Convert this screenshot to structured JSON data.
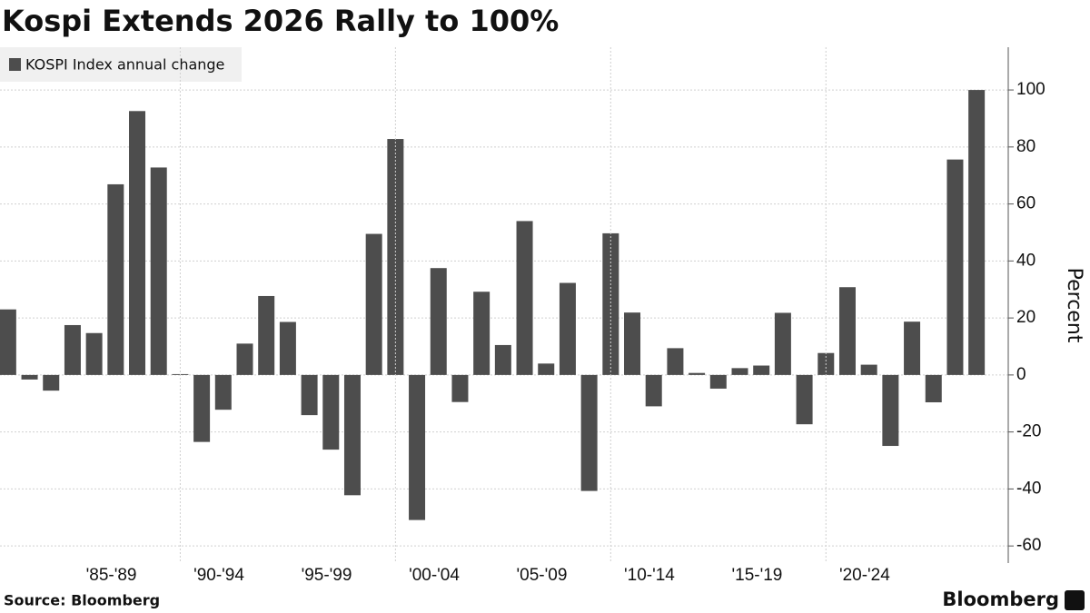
{
  "chart_data": {
    "type": "bar",
    "title": "Kospi Extends 2026 Rally to 100%",
    "legend_label": "KOSPI Index annual change",
    "y_axis_label": "Percent",
    "source": "Source: Bloomberg",
    "brand": "Bloomberg",
    "color": "#4d4d4d",
    "categories": [
      null,
      null,
      null,
      null,
      "'85-'89",
      null,
      null,
      null,
      null,
      "'90-'94",
      null,
      null,
      null,
      null,
      "'95-'99",
      null,
      null,
      null,
      null,
      "'00-'04",
      null,
      null,
      null,
      null,
      "'05-'09",
      null,
      null,
      null,
      null,
      "'10-'14",
      null,
      null,
      null,
      null,
      "'15-'19",
      null,
      null,
      null,
      null,
      "'20-'24",
      null,
      null,
      null,
      null,
      null,
      null
    ],
    "values": [
      23,
      -1.6,
      -5.5,
      17.5,
      14.7,
      66.9,
      92.6,
      72.8,
      0.3,
      -23.5,
      -12.2,
      11,
      27.7,
      18.6,
      -14.1,
      -26.2,
      -42.2,
      49.5,
      82.8,
      -50.9,
      37.5,
      -9.5,
      29.2,
      10.5,
      54,
      4,
      32.3,
      -40.7,
      49.7,
      21.9,
      -11,
      9.4,
      0.7,
      -4.8,
      2.4,
      3.3,
      21.8,
      -17.3,
      7.7,
      30.8,
      3.6,
      -24.9,
      18.7,
      -9.6,
      75.6,
      100
    ],
    "ylim": [
      -66,
      115
    ],
    "yticks": [
      -60,
      -40,
      -20,
      0,
      20,
      40,
      60,
      80,
      100
    ],
    "grid": true
  }
}
